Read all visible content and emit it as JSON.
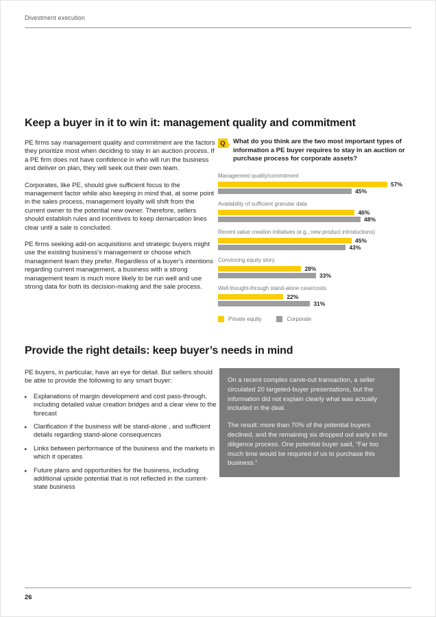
{
  "page": {
    "header": "Divestment execution",
    "page_number": "26"
  },
  "colors": {
    "yellow": "#FBCB06",
    "gray_bar": "#9D9D9D",
    "callout_bg": "#7C7C7C"
  },
  "section1": {
    "title": "Keep a buyer in it to win it: management quality and commitment",
    "paragraphs": [
      "PE firms say management quality and commitment are the factors they prioritize most when deciding to stay in an auction process. If a PE firm does not have confidence in who will run the business and deliver on plan, they will seek out their own team.",
      "Corporates, like PE, should give sufficient focus to the management factor while also keeping in mind that, at some point in the sales process, management loyalty will shift from the current owner to the potential new owner. Therefore, sellers should establish rules and incentives to keep demarcation lines clear until a sale is concluded.",
      "PE firms seeking add-on acquisitions and strategic buyers might use the existing business's management or choose which management team they prefer. Regardless of a buyer's intentions regarding current management, a business with a strong management team is much more likely to be run well and use strong data for both its decision-making and the sale process."
    ],
    "question": {
      "icon": "Q",
      "text": "What do you think are the two most important types of information a PE buyer requires to stay in an auction or purchase process for corporate assets?"
    }
  },
  "chart_data": {
    "type": "bar",
    "orientation": "horizontal",
    "categories": [
      "Management quality/commitment",
      "Availability of sufficient granular data",
      "Recent value creation initiatives (e.g., new product introductions)",
      "Convincing equity story",
      "Well thought-through stand-alone case/costs"
    ],
    "series": [
      {
        "name": "Private equity",
        "color": "#FBCB06",
        "values": [
          57,
          46,
          45,
          28,
          22
        ]
      },
      {
        "name": "Corporate",
        "color": "#9D9D9D",
        "values": [
          45,
          48,
          43,
          33,
          31
        ]
      }
    ],
    "value_suffix": "%",
    "xlim": [
      0,
      57
    ],
    "grid": false,
    "legend_position": "bottom",
    "title": "",
    "xlabel": "",
    "ylabel": ""
  },
  "section2": {
    "title": "Provide the right details: keep buyer’s needs in mind",
    "intro": "PE buyers, in particular, have an eye for detail. But sellers should be able to provide the following to any smart buyer:",
    "bullets": [
      "Explanations of margin development and cost pass-through, including detailed value creation bridges and a clear view to the forecast",
      "Clarification if the business will be stand-alone , and sufficient details regarding stand-alone consequences",
      "Links between performance of the business and the markets in which it operates",
      "Future plans and opportunities for the business, including additional upside potential that is not reflected in the current-state business"
    ],
    "callout": {
      "paragraphs": [
        "On a recent complex carve-out transaction, a seller circulated 20 targeted-buyer presentations, but the information did not explain clearly what was actually included in the deal.",
        "The result: more than 70% of the potential buyers declined, and the remaining six dropped out early in the diligence process. One potential buyer said, “Far too much time would be required of us to purchase this business.”"
      ]
    }
  }
}
